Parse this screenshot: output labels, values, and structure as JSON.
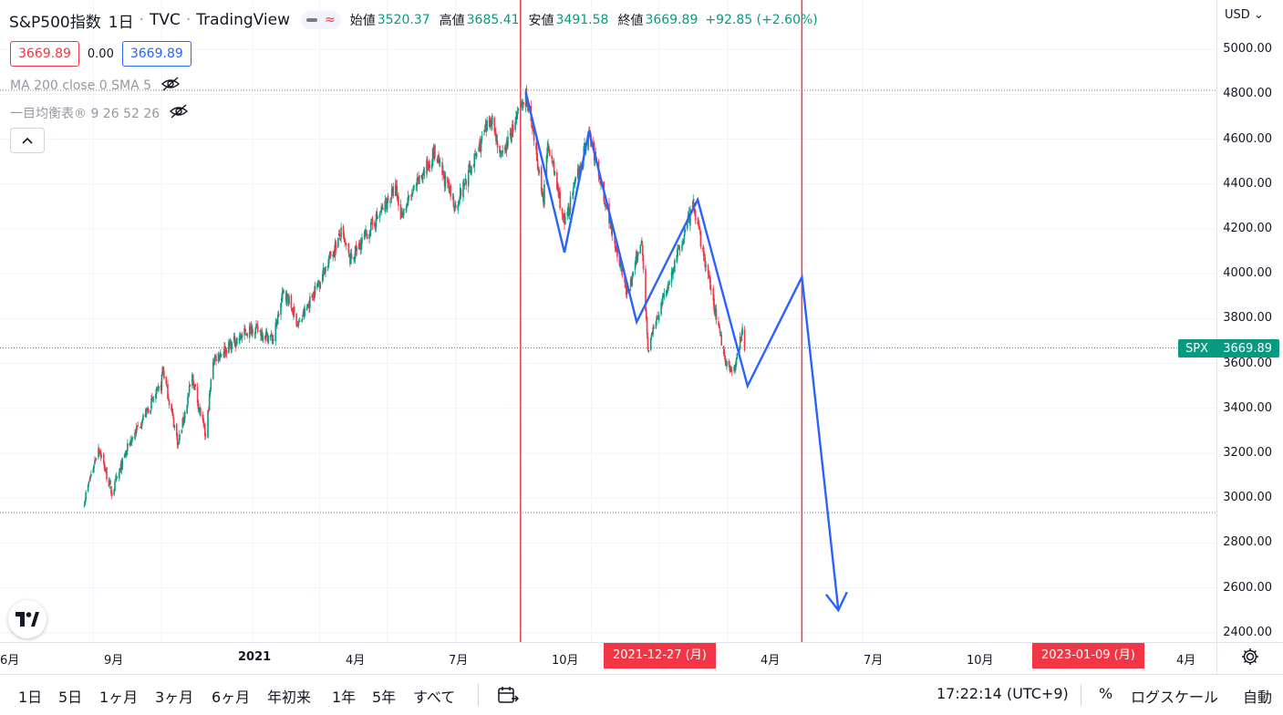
{
  "header": {
    "symbol": "S&P500指数",
    "interval": "1日",
    "exchange": "TVC",
    "source": "TradingView",
    "ohlc": [
      {
        "label": "始値",
        "value": "3520.37"
      },
      {
        "label": "高値",
        "value": "3685.41"
      },
      {
        "label": "安値",
        "value": "3491.58"
      },
      {
        "label": "終値",
        "value": "3669.89"
      }
    ],
    "change": "+92.85 (+2.60%)",
    "bid": "3669.89",
    "spread": "0.00",
    "ask": "3669.89"
  },
  "indicators": {
    "ma": "MA 200 close 0 SMA 5",
    "ichimoku": "一目均衡表® 9 26 52 26"
  },
  "icons": {
    "eye_hidden": "eye-off-icon",
    "collapse": "chevron-up-icon",
    "settings": "gear-icon",
    "compare": "calendar-compare-icon",
    "logo": "tradingview-logo-icon"
  },
  "colors": {
    "up": "#089981",
    "down": "#f23645",
    "drawing": "#2962ff",
    "marker_line": "#f23645"
  },
  "currency": "USD",
  "price_badge": {
    "symbol": "SPX",
    "value": "3669.89"
  },
  "x_axis": {
    "labels": [
      "6月",
      "9月",
      "2021",
      "4月",
      "7月",
      "10月",
      "4月",
      "7月",
      "10月",
      "4月"
    ],
    "markers": [
      "2021-12-27 (月)",
      "2023-01-09 (月)"
    ]
  },
  "bottom_toolbar": {
    "timeframes": [
      "1日",
      "5日",
      "1ヶ月",
      "3ヶ月",
      "6ヶ月",
      "年初来",
      "1年",
      "5年",
      "すべて"
    ],
    "clock": "17:22:14 (UTC+9)",
    "percent": "%",
    "log": "ログスケール",
    "auto": "自動"
  },
  "chart_data": {
    "type": "candlestick",
    "symbol": "SPX",
    "y_axis": {
      "ticks": [
        2400,
        2600,
        2800,
        3000,
        3200,
        3400,
        3600,
        3800,
        4000,
        4200,
        4400,
        4600,
        4800,
        5000
      ],
      "range": [
        2380,
        5080
      ],
      "tick_labels": [
        "2400.00",
        "2600.00",
        "2800.00",
        "3000.00",
        "3200.00",
        "3400.00",
        "3600.00",
        "3800.00",
        "4000.00",
        "4200.00",
        "4400.00",
        "4600.00",
        "4800.00",
        "5000.00"
      ]
    },
    "x_range": [
      "2020-05-20",
      "2023-05-20"
    ],
    "grid": true,
    "price_path": [
      [
        "2020-05-20",
        2990
      ],
      [
        "2020-06-08",
        3230
      ],
      [
        "2020-06-26",
        3020
      ],
      [
        "2020-07-20",
        3250
      ],
      [
        "2020-08-31",
        3500
      ],
      [
        "2020-09-02",
        3580
      ],
      [
        "2020-09-23",
        3240
      ],
      [
        "2020-10-12",
        3540
      ],
      [
        "2020-10-30",
        3270
      ],
      [
        "2020-11-09",
        3620
      ],
      [
        "2020-12-31",
        3760
      ],
      [
        "2021-01-29",
        3710
      ],
      [
        "2021-02-12",
        3930
      ],
      [
        "2021-03-04",
        3770
      ],
      [
        "2021-04-30",
        4180
      ],
      [
        "2021-05-12",
        4060
      ],
      [
        "2021-07-12",
        4380
      ],
      [
        "2021-07-19",
        4260
      ],
      [
        "2021-09-02",
        4540
      ],
      [
        "2021-09-30",
        4300
      ],
      [
        "2021-11-18",
        4700
      ],
      [
        "2021-12-01",
        4510
      ],
      [
        "2022-01-03",
        4800
      ],
      [
        "2022-01-27",
        4330
      ],
      [
        "2022-02-02",
        4590
      ],
      [
        "2022-02-24",
        4220
      ],
      [
        "2022-03-29",
        4630
      ],
      [
        "2022-05-20",
        3900
      ],
      [
        "2022-06-08",
        4160
      ],
      [
        "2022-06-16",
        3670
      ],
      [
        "2022-08-16",
        4305
      ],
      [
        "2022-09-30",
        3590
      ],
      [
        "2022-10-12",
        3580
      ],
      [
        "2022-10-21",
        3760
      ],
      [
        "2022-10-24",
        3670
      ]
    ],
    "drawings": [
      {
        "type": "projection-zigzag",
        "points": [
          [
            "2022-01-03",
            4810
          ],
          [
            "2022-02-24",
            4095
          ],
          [
            "2022-03-29",
            4635
          ],
          [
            "2022-06-01",
            3785
          ],
          [
            "2022-08-22",
            4330
          ],
          [
            "2022-10-28",
            3500
          ],
          [
            "2023-01-09",
            3985
          ],
          [
            "2023-02-27",
            2500
          ]
        ],
        "arrow_end": true
      }
    ],
    "vertical_markers": [
      "2021-12-27",
      "2023-01-09"
    ],
    "horizontal_levels": [
      4818,
      2935
    ],
    "last_price": 3669.89
  }
}
